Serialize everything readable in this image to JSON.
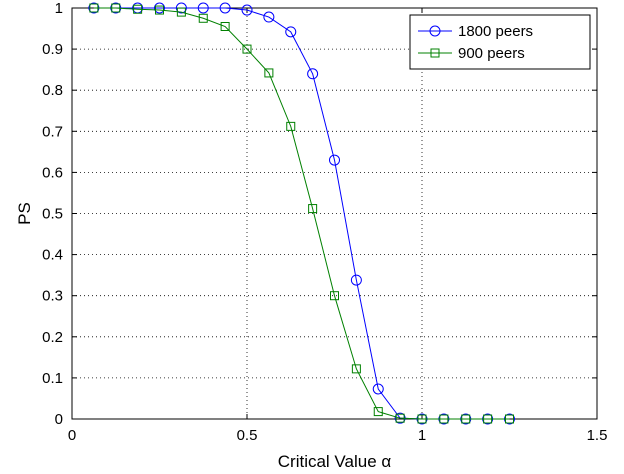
{
  "chart_data": {
    "type": "line",
    "title": "",
    "xlabel": "Critical Value α",
    "ylabel": "PS",
    "xlim": [
      0,
      1.5
    ],
    "ylim": [
      0,
      1
    ],
    "x_ticks": [
      0,
      0.5,
      1,
      1.5
    ],
    "x_tick_labels": [
      "0",
      "0.5",
      "1",
      "1.5"
    ],
    "y_ticks": [
      0,
      0.1,
      0.2,
      0.3,
      0.4,
      0.5,
      0.6,
      0.7,
      0.8,
      0.9,
      1
    ],
    "y_tick_labels": [
      "0",
      "0.1",
      "0.2",
      "0.3",
      "0.4",
      "0.5",
      "0.6",
      "0.7",
      "0.8",
      "0.9",
      "1"
    ],
    "grid": true,
    "legend_position": "top-right",
    "series": [
      {
        "name": "1800 peers",
        "color": "#0000ff",
        "marker": "circle",
        "x": [
          0.0625,
          0.125,
          0.1875,
          0.25,
          0.3125,
          0.375,
          0.4375,
          0.5,
          0.5625,
          0.625,
          0.6875,
          0.75,
          0.8125,
          0.875,
          0.9375,
          1.0,
          1.0625,
          1.125,
          1.1875,
          1.25
        ],
        "y": [
          1.0,
          1.0,
          1.0,
          1.0,
          1.0,
          1.0,
          1.0,
          0.995,
          0.978,
          0.942,
          0.84,
          0.63,
          0.338,
          0.073,
          0.002,
          0,
          0,
          0,
          0,
          0
        ]
      },
      {
        "name": "900 peers",
        "color": "#008000",
        "marker": "square",
        "x": [
          0.0625,
          0.125,
          0.1875,
          0.25,
          0.3125,
          0.375,
          0.4375,
          0.5,
          0.5625,
          0.625,
          0.6875,
          0.75,
          0.8125,
          0.875,
          0.9375,
          1.0,
          1.0625,
          1.125,
          1.1875,
          1.25
        ],
        "y": [
          1.0,
          1.0,
          0.997,
          0.995,
          0.99,
          0.975,
          0.955,
          0.9,
          0.842,
          0.712,
          0.512,
          0.3,
          0.122,
          0.018,
          0.002,
          0,
          0,
          0,
          0,
          0
        ]
      }
    ]
  }
}
